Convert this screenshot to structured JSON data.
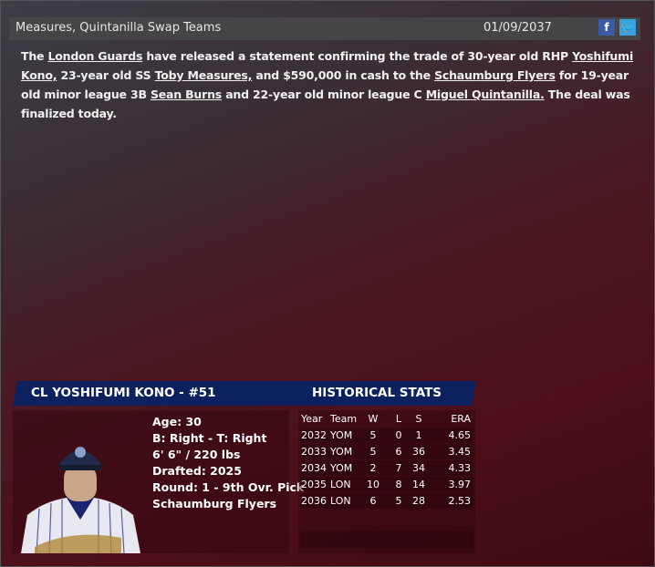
{
  "header": {
    "title": "Measures, Quintanilla Swap Teams",
    "date": "01/09/2037",
    "facebook": "f",
    "twitter": "t",
    "colors": {
      "facebook": "#3a5aa8",
      "twitter": "#3aa0e0"
    }
  },
  "story": {
    "p1": "The ",
    "l1": "London Guards",
    "p2": " have released a statement confirming the trade of 30-year old RHP ",
    "l2": "Yoshifumi Kono,",
    "p3": " 23-year old SS ",
    "l3": "Toby Measures,",
    "p4": " and $590,000 in cash to the ",
    "l4": "Schaumburg Flyers",
    "p5": " for 19-year old minor league 3B ",
    "l5": "Sean Burns",
    "p6": " and 22-year old minor league C ",
    "l6": "Miguel Quintanilla.",
    "p7": " The deal was finalized today."
  },
  "player": {
    "name": "CL YOSHIFUMI KONO - #51",
    "age": "Age: 30",
    "bats": "B: Right - T: Right",
    "size": "6' 6\" / 220 lbs",
    "drafted": "Drafted: 2025",
    "round": "Round: 1 - 9th Ovr. Pick",
    "team": "Schaumburg Flyers"
  },
  "stats": {
    "title": "HISTORICAL STATS",
    "headers": [
      "Year",
      "Team",
      "W",
      "L",
      "S",
      "ERA"
    ],
    "rows": [
      [
        "2032",
        "YOM",
        "5",
        "0",
        "1",
        "4.65"
      ],
      [
        "2033",
        "YOM",
        "5",
        "6",
        "36",
        "3.45"
      ],
      [
        "2034",
        "YOM",
        "2",
        "7",
        "34",
        "4.33"
      ],
      [
        "2035",
        "LON",
        "10",
        "8",
        "14",
        "3.97"
      ],
      [
        "2036",
        "LON",
        "6",
        "5",
        "28",
        "2.53"
      ]
    ]
  }
}
